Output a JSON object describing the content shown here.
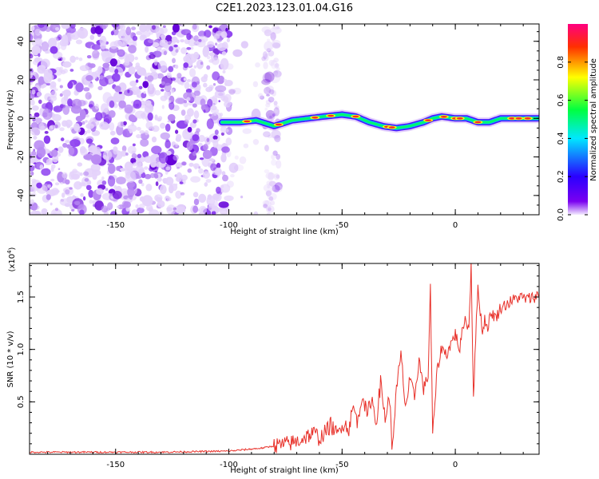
{
  "title": "C2E1.2023.123.01.04.G16",
  "chart_data": [
    {
      "type": "heatmap",
      "xlabel": "Height of straight line (km)",
      "ylabel": "Frequency (Hz)",
      "xlim": [
        -188,
        37
      ],
      "ylim": [
        -50,
        49
      ],
      "xticks": [
        -150,
        -100,
        -50,
        0
      ],
      "yticks": [
        -40,
        -20,
        0,
        20,
        40
      ],
      "colorbar": {
        "label": "Normalized spectral amplitude",
        "range": [
          0.0,
          1.0
        ],
        "ticks": [
          "0.0",
          "0.2",
          "0.4",
          "0.6",
          "0.8"
        ],
        "colormap": [
          "#f4ecff",
          "#7a00f0",
          "#2a00ff",
          "#00e8ff",
          "#00ff40",
          "#ffff00",
          "#ff3000",
          "#ff0080"
        ]
      },
      "noise_region_x": [
        -188,
        -78
      ],
      "signal_ridge": {
        "x": [
          -103,
          -95,
          -88,
          -80,
          -72,
          -65,
          -58,
          -50,
          -44,
          -38,
          -32,
          -26,
          -20,
          -14,
          -10,
          -6,
          0,
          5,
          10,
          15,
          20,
          25,
          30,
          37
        ],
        "freq": [
          -2,
          -2,
          -1,
          -4,
          -1,
          0,
          1,
          2,
          1,
          -2,
          -4,
          -5,
          -4,
          -2,
          0,
          1,
          0,
          0,
          -2,
          -2,
          0,
          0,
          0,
          0
        ]
      }
    },
    {
      "type": "line",
      "xlabel": "Height of straight line (km)",
      "ylabel": "SNR (10 * v/v)",
      "multiplier": "(x10",
      "multiplier_exp": "4",
      "multiplier_close": ")",
      "xlim": [
        -188,
        37
      ],
      "ylim": [
        0,
        1.82
      ],
      "xticks": [
        -150,
        -100,
        -50,
        0
      ],
      "yticks": [
        "0.5",
        "1.0",
        "1.5"
      ],
      "color": "#e8312a",
      "series": [
        {
          "x": [
            -188,
            -160,
            -130,
            -100,
            -90,
            -85,
            -80,
            -76,
            -70,
            -65,
            -62,
            -60,
            -57,
            -55,
            -52,
            -50,
            -47,
            -45,
            -43,
            -41,
            -39,
            -37,
            -35,
            -33,
            -31,
            -29,
            -28,
            -26,
            -24,
            -22,
            -20,
            -18,
            -16,
            -14,
            -12,
            -11,
            -10,
            -8,
            -6,
            -4,
            -2,
            0,
            2,
            4,
            6,
            7,
            8,
            9,
            10,
            12,
            13,
            14,
            16,
            18,
            20,
            24,
            28,
            32,
            37
          ],
          "y": [
            0.02,
            0.02,
            0.02,
            0.03,
            0.05,
            0.06,
            0.08,
            0.09,
            0.12,
            0.18,
            0.2,
            0.15,
            0.22,
            0.28,
            0.18,
            0.3,
            0.25,
            0.45,
            0.3,
            0.6,
            0.35,
            0.55,
            0.3,
            0.68,
            0.35,
            0.55,
            0.05,
            0.6,
            0.95,
            0.45,
            0.7,
            0.55,
            0.9,
            0.62,
            0.75,
            1.6,
            0.18,
            0.8,
            1.02,
            0.95,
            1.05,
            1.15,
            1.0,
            1.3,
            1.2,
            1.82,
            0.55,
            1.1,
            1.6,
            1.15,
            1.3,
            1.2,
            1.35,
            1.3,
            1.4,
            1.45,
            1.5,
            1.48,
            1.52
          ]
        }
      ]
    }
  ]
}
